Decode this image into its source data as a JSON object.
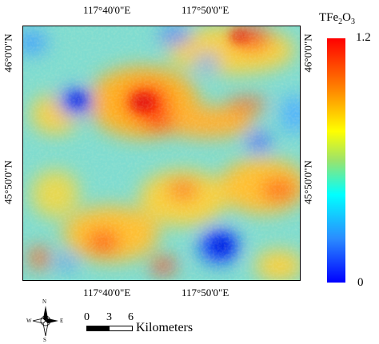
{
  "map": {
    "top_ticks": [
      "117°40'0\"E",
      "117°50'0\"E"
    ],
    "bottom_ticks": [
      "117°40'0\"E",
      "117°50'0\"E"
    ],
    "left_ticks": [
      "46°0'0\"N",
      "45°50'0\"N"
    ],
    "right_ticks": [
      "46°0'0\"N",
      "45°50'0\"N"
    ]
  },
  "legend": {
    "title_base": "TFe",
    "title_sub1": "2",
    "title_mid": "O",
    "title_sub2": "3",
    "max_label": "1.2",
    "min_label": "0",
    "color_high": "#ff0000",
    "color_low": "#0000ff"
  },
  "scale_bar": {
    "labels": [
      "0",
      "3",
      "6"
    ],
    "unit": "Kilometers"
  },
  "compass": {
    "n": "N",
    "s": "S",
    "e": "E",
    "w": "W"
  }
}
